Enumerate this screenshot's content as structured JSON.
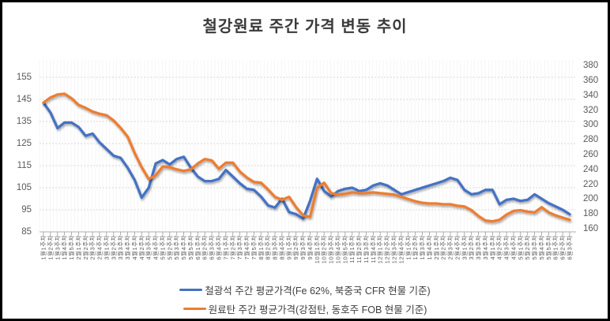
{
  "title": "철강원료 주간 가격 변동 추이",
  "legend": [
    {
      "label": "철광석 주간 평균가격(Fe 62%, 북중국 CFR 현물 기준)",
      "color": "#4472C4"
    },
    {
      "label": "원료탄 주간 평균가격(강점탄, 동호주 FOB 현물 기준)",
      "color": "#ED7D31"
    }
  ],
  "colors": {
    "iron_ore_line": "#4472C4",
    "coking_coal_line": "#ED7D31",
    "gridline": "#d9d9d9",
    "stripe": "#f2f2f2",
    "axis_line": "#bfbfbf",
    "axis_text": "#595959",
    "title_text": "#3a3a3a"
  },
  "chart_data": {
    "type": "line",
    "title": "철강원료 주간 가격 변동 추이",
    "grid": true,
    "legend_position": "bottom",
    "x_tick_style": "rotated-90",
    "categories": [
      "1월1주차",
      "1월2주차",
      "1월3주차",
      "1월4주차",
      "1월5주차",
      "2월1주차",
      "2월2주차",
      "2월3주차",
      "2월4주차",
      "3월1주차",
      "3월2주차",
      "3월3주차",
      "3월4주차",
      "4월1주차",
      "4월2주차",
      "4월3주차",
      "4월4주차",
      "5월1주차",
      "5월2주차",
      "5월3주차",
      "5월4주차",
      "5월5주차",
      "6월1주차",
      "6월2주차",
      "6월3주차",
      "6월4주차",
      "7월1주차",
      "7월2주차",
      "7월3주차",
      "7월4주차",
      "7월5주차",
      "8월1주차",
      "8월2주차",
      "8월3주차",
      "8월4주차",
      "9월1주차",
      "9월2주차",
      "9월3주차",
      "9월4주차",
      "10월1주차",
      "10월2주차",
      "10월3주차",
      "10월4주차",
      "10월5주차",
      "11월1주차",
      "11월2주차",
      "11월3주차",
      "11월4주차",
      "12월1주차",
      "12월2주차",
      "12월3주차",
      "12월4주차",
      "1월1주차",
      "1월2주차",
      "1월3주차",
      "1월4주차",
      "2월1주차",
      "2월2주차",
      "2월3주차",
      "2월4주차",
      "3월1주차",
      "3월2주차",
      "3월3주차",
      "3월4주차",
      "4월1주차",
      "4월2주차",
      "4월3주차",
      "4월4주차",
      "5월1주차",
      "5월2주차",
      "5월3주차",
      "5월4주차",
      "5월5주차",
      "6월1주차",
      "6월2주차",
      "6월3주차"
    ],
    "series": [
      {
        "name": "철광석 주간 평균가격(Fe 62%, 북중국 CFR 현물 기준)",
        "axis": "left",
        "color": "#4472C4",
        "values": [
          143.5,
          139,
          132,
          134.5,
          134.5,
          132.5,
          128.5,
          129.5,
          125.5,
          122.5,
          119.5,
          118.5,
          114,
          108.5,
          100.5,
          105,
          116,
          117.5,
          115.5,
          118,
          119,
          114,
          110,
          108,
          108,
          109,
          113,
          110,
          107,
          104.5,
          104,
          101,
          97,
          96,
          100,
          94,
          93,
          91,
          99,
          109,
          103.5,
          101,
          103.5,
          104.5,
          105,
          103.5,
          104,
          106,
          107,
          106,
          104,
          102,
          103,
          104,
          105,
          106,
          107,
          108,
          109.5,
          108.5,
          104,
          102,
          102.5,
          104,
          104,
          97.5,
          99.5,
          100,
          99,
          99.5,
          102,
          100,
          98,
          96.5,
          95,
          93
        ]
      },
      {
        "name": "원료탄 주간 평균가격(강점탄, 동호주 FOB 현물 기준)",
        "axis": "right",
        "color": "#ED7D31",
        "values": [
          330,
          337,
          341,
          342,
          336,
          327,
          323,
          318,
          315,
          313,
          306,
          296,
          284,
          262,
          243,
          227,
          232,
          244,
          243,
          240,
          238,
          240,
          248,
          254,
          252,
          241,
          249,
          249,
          237,
          229,
          223,
          222,
          213,
          203,
          199,
          203,
          189,
          178,
          176,
          215,
          222,
          208,
          206,
          207,
          209,
          208,
          208,
          209,
          208,
          207,
          206,
          203,
          200,
          197,
          195,
          194,
          194,
          193,
          193,
          191,
          190,
          185,
          177,
          171,
          170,
          172,
          179,
          184,
          185,
          183,
          182,
          189,
          182,
          178,
          175,
          172
        ]
      }
    ],
    "left_axis": {
      "ticks": [
        155,
        145,
        135,
        125,
        115,
        105,
        95,
        85
      ],
      "min": 85,
      "max": 162
    },
    "right_axis": {
      "ticks": [
        380,
        360,
        340,
        320,
        300,
        280,
        260,
        240,
        220,
        200,
        180,
        160
      ],
      "min": 160,
      "max": 384
    }
  }
}
